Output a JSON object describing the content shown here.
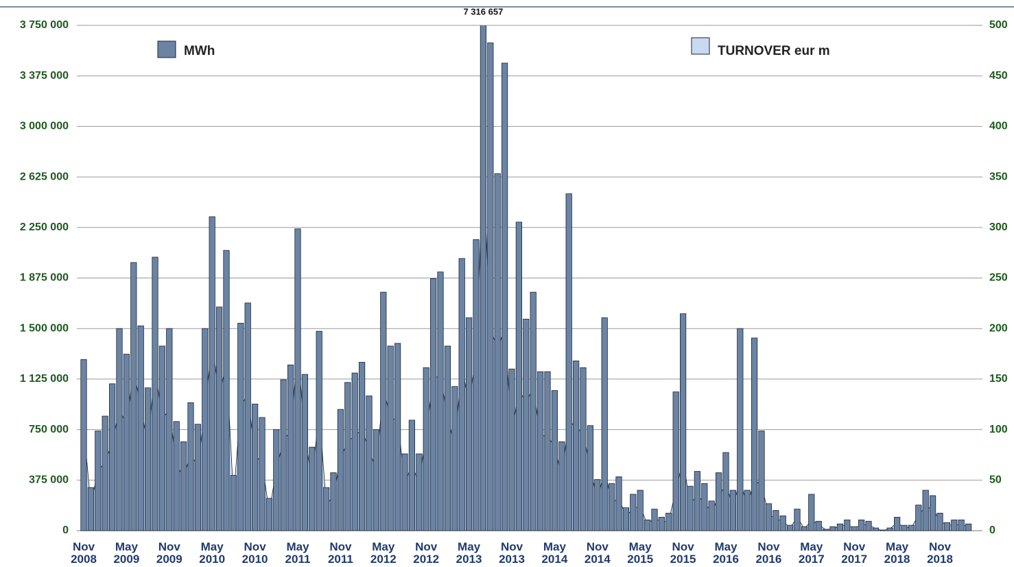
{
  "chart_data": {
    "type": "bar",
    "categories": [
      "Nov 2008",
      null,
      null,
      null,
      null,
      null,
      "May 2009",
      null,
      null,
      null,
      null,
      null,
      "Nov 2009",
      null,
      null,
      null,
      null,
      null,
      "May 2010",
      null,
      null,
      null,
      null,
      null,
      "Nov 2010",
      null,
      null,
      null,
      null,
      null,
      "May 2011",
      null,
      null,
      null,
      null,
      null,
      "Nov 2011",
      null,
      null,
      null,
      null,
      null,
      "May 2012",
      null,
      null,
      null,
      null,
      null,
      "Nov 2012",
      null,
      null,
      null,
      null,
      null,
      "May 2013",
      null,
      null,
      null,
      null,
      null,
      "Nov 2013",
      null,
      null,
      null,
      null,
      null,
      "May 2014",
      null,
      null,
      null,
      null,
      null,
      "Nov 2014",
      null,
      null,
      null,
      null,
      null,
      "May 2015",
      null,
      null,
      null,
      null,
      null,
      "Nov 2015",
      null,
      null,
      null,
      null,
      null,
      "May 2016",
      null,
      null,
      null,
      null,
      null,
      "Nov 2016",
      null,
      null,
      null,
      null,
      null,
      "May 2017",
      null,
      null,
      null,
      null,
      null,
      "Nov 2017",
      null,
      null,
      null,
      null,
      null,
      "May 2018",
      null,
      null,
      null,
      null,
      null,
      "Nov 2018",
      null,
      null,
      null,
      null
    ],
    "series": [
      {
        "name": "MWh",
        "color": "#6b84a4",
        "values": [
          1270000,
          320000,
          740000,
          850000,
          1090000,
          1500000,
          1310000,
          1990000,
          1520000,
          1060000,
          2030000,
          1370000,
          1500000,
          810000,
          660000,
          950000,
          790000,
          1500000,
          2330000,
          1660000,
          2080000,
          410000,
          1540000,
          1690000,
          940000,
          840000,
          240000,
          750000,
          1120000,
          1230000,
          2240000,
          1160000,
          620000,
          1480000,
          320000,
          430000,
          900000,
          1100000,
          1170000,
          1250000,
          1000000,
          750000,
          1770000,
          1370000,
          1390000,
          570000,
          820000,
          570000,
          1210000,
          1870000,
          1920000,
          1370000,
          1070000,
          2020000,
          1580000,
          2160000,
          7316657,
          3620000,
          2650000,
          3470000,
          1200000,
          2290000,
          1570000,
          1770000,
          1180000,
          1180000,
          1040000,
          660000,
          2500000,
          1260000,
          1210000,
          780000,
          380000,
          1580000,
          350000,
          400000,
          170000,
          270000,
          300000,
          80000,
          160000,
          100000,
          130000,
          1030000,
          1610000,
          330000,
          440000,
          350000,
          220000,
          430000,
          580000,
          300000,
          1500000,
          300000,
          1430000,
          740000,
          200000,
          150000,
          110000,
          40000,
          160000,
          30000,
          270000,
          70000,
          10000,
          30000,
          50000,
          80000,
          30000,
          80000,
          70000,
          20000,
          5000,
          20000,
          100000,
          40000,
          40000,
          190000,
          300000,
          260000,
          130000,
          60000,
          80000,
          80000,
          50000
        ],
        "value_labels": [
          null,
          null,
          null,
          null,
          null,
          null,
          null,
          null,
          null,
          null,
          null,
          null,
          null,
          null,
          null,
          null,
          null,
          null,
          null,
          null,
          null,
          null,
          null,
          null,
          null,
          null,
          null,
          null,
          null,
          null,
          null,
          null,
          null,
          null,
          null,
          null,
          null,
          null,
          null,
          null,
          null,
          null,
          null,
          null,
          null,
          null,
          null,
          null,
          null,
          null,
          null,
          null,
          null,
          null,
          null,
          null,
          "7 316 657",
          null,
          null,
          null,
          null,
          null,
          null,
          null,
          null,
          null,
          null,
          null,
          null,
          null,
          null,
          null,
          null,
          null,
          null,
          null,
          null,
          null,
          null,
          null,
          null,
          null,
          null,
          null,
          null,
          null,
          null,
          null,
          null,
          null,
          null,
          null,
          null,
          null,
          null,
          null,
          null,
          null,
          null,
          null,
          null,
          null,
          null,
          null,
          null,
          null,
          null,
          null,
          null,
          null,
          null,
          null,
          null,
          null,
          null,
          null,
          null,
          null,
          null,
          null,
          null,
          null,
          null,
          null,
          null
        ]
      },
      {
        "name": "TURNOVER eur m",
        "color": "#c9d9ef",
        "axis": "y2",
        "values": [
          102,
          26,
          59,
          68,
          87,
          120,
          105,
          159,
          122,
          85,
          162,
          110,
          120,
          65,
          53,
          76,
          63,
          120,
          186,
          133,
          166,
          33,
          123,
          135,
          75,
          67,
          19,
          60,
          90,
          98,
          179,
          93,
          50,
          118,
          26,
          34,
          72,
          88,
          94,
          100,
          80,
          60,
          142,
          110,
          111,
          46,
          66,
          46,
          97,
          150,
          154,
          110,
          86,
          162,
          126,
          173,
          360,
          200,
          180,
          200,
          96,
          140,
          126,
          142,
          94,
          94,
          83,
          53,
          110,
          101,
          97,
          62,
          30,
          60,
          28,
          32,
          14,
          22,
          24,
          6,
          13,
          8,
          10,
          40,
          70,
          26,
          35,
          28,
          18,
          34,
          46,
          24,
          50,
          24,
          50,
          45,
          16,
          12,
          9,
          3,
          13,
          2,
          10,
          6,
          1,
          2,
          4,
          6,
          2,
          6,
          6,
          2,
          0,
          2,
          8,
          3,
          3,
          15,
          24,
          21,
          10,
          5,
          6,
          6,
          4
        ]
      }
    ],
    "ylim": [
      0,
      3750000
    ],
    "yticks": [
      0,
      {
        "value": 375000,
        "label": "375 000"
      },
      {
        "value": 750000,
        "label": "750 000"
      },
      {
        "value": 1125000,
        "label": "1 125 000"
      },
      {
        "value": 1500000,
        "label": "1 500 000"
      },
      {
        "value": 1875000,
        "label": "1 875 000"
      },
      {
        "value": 2250000,
        "label": "2 250 000"
      },
      {
        "value": 2625000,
        "label": "2 625 000"
      },
      {
        "value": 3000000,
        "label": "3 000 000"
      },
      {
        "value": 3375000,
        "label": "3 375 000"
      },
      {
        "value": 3750000,
        "label": "3 750 000"
      }
    ],
    "y2lim": [
      0,
      500
    ],
    "y2ticks": [
      0,
      50,
      100,
      150,
      200,
      250,
      300,
      350,
      400,
      450,
      500
    ],
    "grid": true
  }
}
